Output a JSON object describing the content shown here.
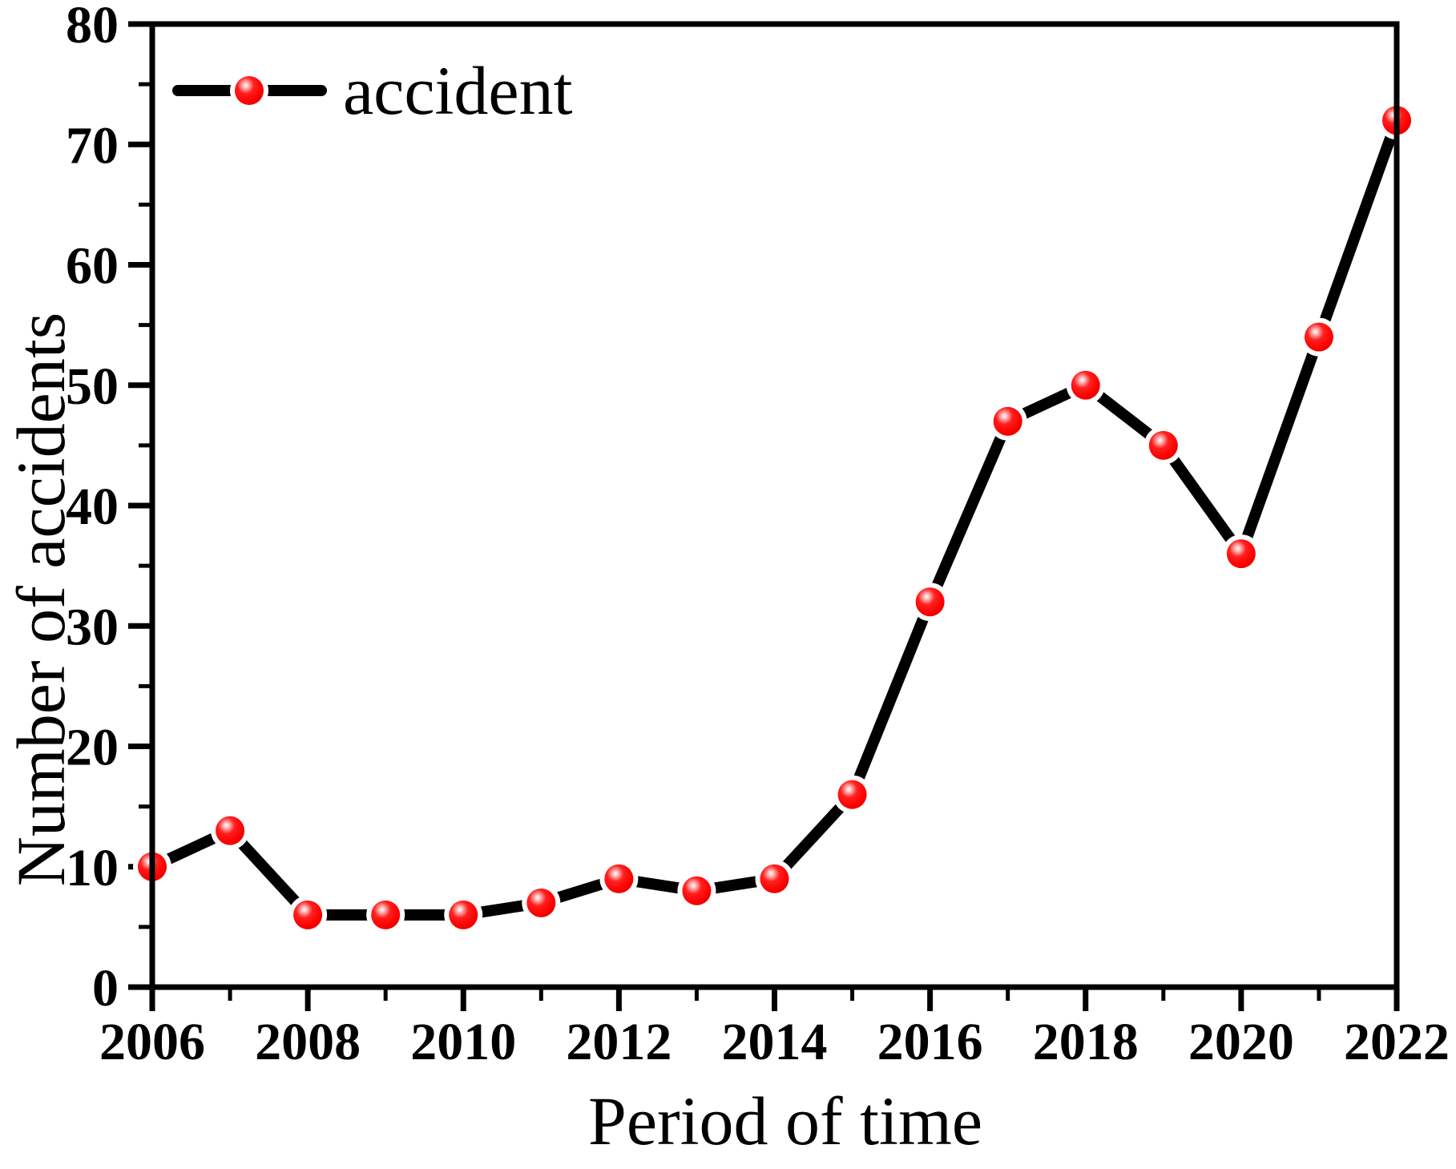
{
  "chart_data": {
    "type": "line",
    "title": "",
    "xlabel": "Period of time",
    "ylabel": "Number of accidents",
    "legend": {
      "label": "accident",
      "position": "top-left"
    },
    "x": [
      2006,
      2007,
      2008,
      2009,
      2010,
      2011,
      2012,
      2013,
      2014,
      2015,
      2016,
      2017,
      2018,
      2019,
      2020,
      2021,
      2022
    ],
    "series": [
      {
        "name": "accident",
        "values": [
          10,
          13,
          6,
          6,
          6,
          7,
          9,
          8,
          9,
          16,
          32,
          47,
          50,
          45,
          36,
          54,
          72
        ],
        "line_color": "#000000",
        "marker_fill_color": "#ff0000",
        "marker_style": "ball"
      }
    ],
    "xlim": [
      2006,
      2022
    ],
    "ylim": [
      0,
      80
    ],
    "x_major_step": 2,
    "x_minor_step": 1,
    "y_major_step": 10,
    "y_minor_step": 5,
    "x_tick_labels": [
      "2006",
      "2008",
      "2010",
      "2012",
      "2014",
      "2016",
      "2018",
      "2020",
      "2022"
    ],
    "y_tick_labels": [
      "0",
      "10",
      "20",
      "30",
      "40",
      "50",
      "60",
      "70",
      "80"
    ],
    "grid": false,
    "axis_color": "#000000",
    "background_color": "#ffffff"
  }
}
